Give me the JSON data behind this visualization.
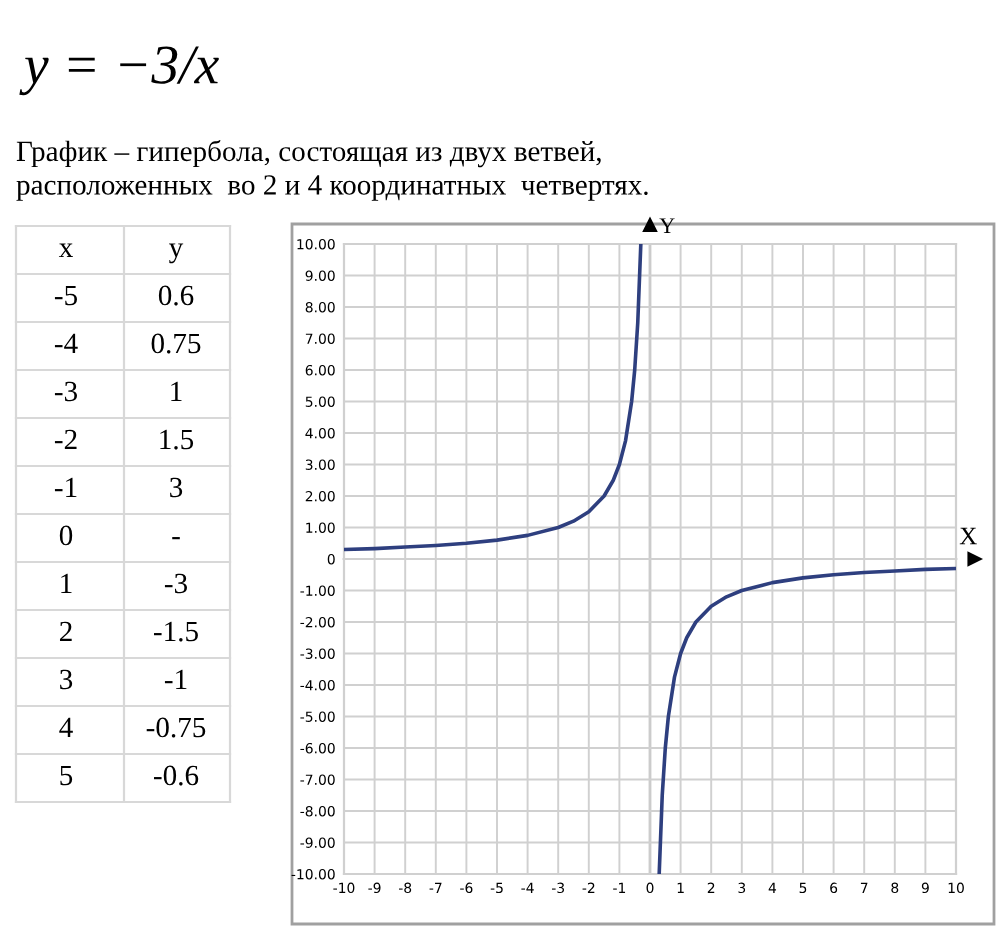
{
  "chart_data": {
    "type": "line",
    "title": "y = −3/x",
    "subtitle": "График – гипербола, состоящая из двух ветвей,\nрасположенных  во 2 и 4 координатных  четвертях.",
    "xlabel": "X",
    "ylabel": "Y",
    "annotations": [
      "x",
      "y",
      "-5",
      "0.6",
      "-4",
      "0.75",
      "-3",
      "1",
      "-2",
      "1.5",
      "-1",
      "3",
      "0",
      "-",
      "1",
      "-3",
      "2",
      "-1.5",
      "3",
      "-1",
      "4",
      "-0.75",
      "5",
      "-0.6"
    ],
    "series": [
      {
        "color": "#2e3f7f",
        "x": [
          -10,
          -9,
          -8,
          -7,
          -6,
          -5,
          -4,
          -3,
          -2.5,
          -2,
          -1.5,
          -1.2,
          -1,
          -0.8,
          -0.6,
          -0.5,
          -0.4,
          -0.3
        ],
        "values": [
          0.3,
          0.33,
          0.38,
          0.43,
          0.5,
          0.6,
          0.75,
          1,
          1.2,
          1.5,
          2,
          2.5,
          3,
          3.75,
          5,
          6,
          7.5,
          10
        ]
      },
      {
        "color": "#2e3f7f",
        "x": [
          0.3,
          0.4,
          0.5,
          0.6,
          0.8,
          1,
          1.2,
          1.5,
          2,
          2.5,
          3,
          4,
          5,
          6,
          7,
          8,
          9,
          10
        ],
        "values": [
          -10,
          -7.5,
          -6,
          -5,
          -3.75,
          -3,
          -2.5,
          -2,
          -1.5,
          -1.2,
          -1,
          -0.75,
          -0.6,
          -0.5,
          -0.43,
          -0.38,
          -0.33,
          -0.3
        ]
      }
    ],
    "xlim": [
      -10,
      10
    ],
    "ylim": [
      -10,
      10
    ],
    "xticks": [
      -10,
      -9,
      -8,
      -7,
      -6,
      -5,
      -4,
      -3,
      -2,
      -1,
      0,
      1,
      2,
      3,
      4,
      5,
      6,
      7,
      8,
      9,
      10
    ],
    "yticks": [
      {
        "value": -10,
        "label": "-10.00"
      },
      {
        "value": -9,
        "label": "-9.00"
      },
      {
        "value": -8,
        "label": "-8.00"
      },
      {
        "value": -7,
        "label": "-7.00"
      },
      {
        "value": -6,
        "label": "-6.00"
      },
      {
        "value": -5,
        "label": "-5.00"
      },
      {
        "value": -4,
        "label": "-4.00"
      },
      {
        "value": -3,
        "label": "-3.00"
      },
      {
        "value": -2,
        "label": "-2.00"
      },
      {
        "value": -1,
        "label": "-1.00"
      },
      0,
      {
        "value": 1,
        "label": "1.00"
      },
      {
        "value": 2,
        "label": "2.00"
      },
      {
        "value": 3,
        "label": "3.00"
      },
      {
        "value": 4,
        "label": "4.00"
      },
      {
        "value": 5,
        "label": "5.00"
      },
      {
        "value": 6,
        "label": "6.00"
      },
      {
        "value": 7,
        "label": "7.00"
      },
      {
        "value": 8,
        "label": "8.00"
      },
      {
        "value": 9,
        "label": "9.00"
      },
      {
        "value": 10,
        "label": "10.00"
      }
    ],
    "grid": true,
    "legend": false,
    "marker": "none",
    "line_style": "solid"
  }
}
